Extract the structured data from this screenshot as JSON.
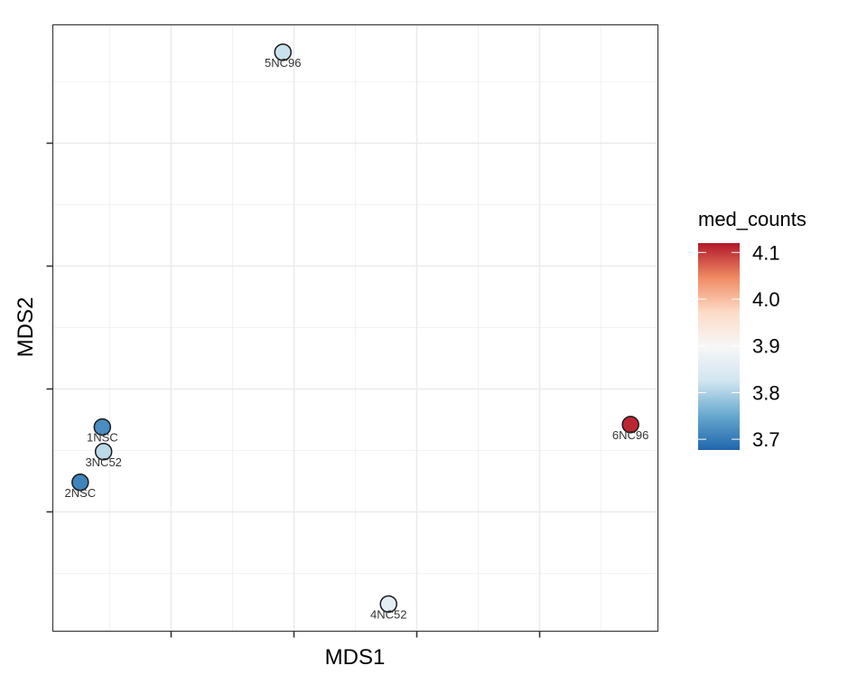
{
  "chart_data": {
    "type": "scatter",
    "xlabel": "MDS1",
    "ylabel": "MDS2",
    "x_ticks_labeled": false,
    "y_ticks_labeled": false,
    "x_tick_positions": [
      1,
      2,
      3,
      4
    ],
    "y_tick_positions": [
      1,
      2,
      3,
      4
    ],
    "xlim": [
      0.037,
      4.963
    ],
    "ylim": [
      0.029,
      4.963
    ],
    "grid": true,
    "legend": {
      "title": "med_counts",
      "type": "colorbar",
      "placement": "right",
      "range": [
        3.677,
        4.12
      ],
      "ticks": [
        "4.1",
        "4.0",
        "3.9",
        "3.8",
        "3.7"
      ],
      "tick_values": [
        4.1,
        4.0,
        3.9,
        3.8,
        3.7
      ],
      "palette": [
        "#2166ac",
        "#67a9cf",
        "#d1e5f0",
        "#f7f7f7",
        "#fddbc7",
        "#ef8a62",
        "#b2182b"
      ]
    },
    "points": [
      {
        "label": "1NSC",
        "x": 0.44,
        "y": 1.69,
        "med_counts": 3.72
      },
      {
        "label": "2NSC",
        "x": 0.26,
        "y": 1.24,
        "med_counts": 3.71
      },
      {
        "label": "3NC52",
        "x": 0.45,
        "y": 1.49,
        "med_counts": 3.81
      },
      {
        "label": "4NC52",
        "x": 2.77,
        "y": 0.25,
        "med_counts": 3.86
      },
      {
        "label": "5NC96",
        "x": 1.91,
        "y": 4.74,
        "med_counts": 3.82
      },
      {
        "label": "6NC96",
        "x": 4.74,
        "y": 1.71,
        "med_counts": 4.11
      }
    ]
  }
}
